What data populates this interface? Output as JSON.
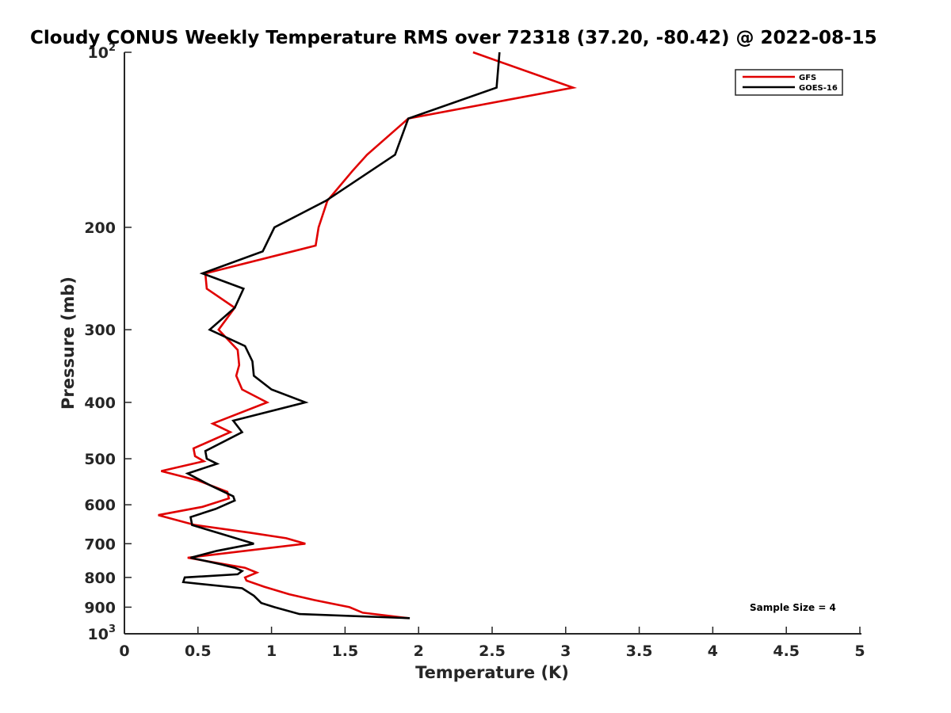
{
  "chart_data": {
    "type": "line",
    "title": "Cloudy CONUS Weekly Temperature RMS over 72318 (37.20, -80.42) @ 2022-08-15",
    "xlabel": "Temperature (K)",
    "ylabel": "Pressure (mb)",
    "xlim": [
      0,
      5
    ],
    "ylim": [
      1000,
      100
    ],
    "y_scale": "log",
    "y_reversed": true,
    "grid": false,
    "legend_position": "top-right",
    "x_ticks": [
      "0",
      "0.5",
      "1",
      "1.5",
      "2",
      "2.5",
      "3",
      "3.5",
      "4",
      "4.5",
      "5"
    ],
    "x_tick_values": [
      0,
      0.5,
      1,
      1.5,
      2,
      2.5,
      3,
      3.5,
      4,
      4.5,
      5
    ],
    "y_ticks": [
      {
        "value": 100,
        "base": "10",
        "exp": "2"
      },
      {
        "value": 200,
        "label": "200"
      },
      {
        "value": 300,
        "label": "300"
      },
      {
        "value": 400,
        "label": "400"
      },
      {
        "value": 500,
        "label": "500"
      },
      {
        "value": 600,
        "label": "600"
      },
      {
        "value": 700,
        "label": "700"
      },
      {
        "value": 800,
        "label": "800"
      },
      {
        "value": 900,
        "label": "900"
      },
      {
        "value": 1000,
        "base": "10",
        "exp": "3"
      }
    ],
    "annotation": "Sample Size = 4",
    "series": [
      {
        "name": "GFS",
        "color": "#e00000",
        "points": [
          [
            2.37,
            100
          ],
          [
            3.05,
            115
          ],
          [
            1.93,
            130
          ],
          [
            1.65,
            150
          ],
          [
            1.55,
            160
          ],
          [
            1.38,
            180
          ],
          [
            1.32,
            200
          ],
          [
            1.3,
            215
          ],
          [
            0.55,
            240
          ],
          [
            0.56,
            255
          ],
          [
            0.75,
            275
          ],
          [
            0.64,
            300
          ],
          [
            0.77,
            325
          ],
          [
            0.78,
            345
          ],
          [
            0.76,
            360
          ],
          [
            0.8,
            380
          ],
          [
            0.97,
            400
          ],
          [
            0.6,
            435
          ],
          [
            0.72,
            450
          ],
          [
            0.47,
            480
          ],
          [
            0.48,
            495
          ],
          [
            0.54,
            505
          ],
          [
            0.25,
            525
          ],
          [
            0.5,
            545
          ],
          [
            0.7,
            570
          ],
          [
            0.71,
            585
          ],
          [
            0.53,
            605
          ],
          [
            0.23,
            625
          ],
          [
            0.48,
            650
          ],
          [
            0.85,
            670
          ],
          [
            1.1,
            685
          ],
          [
            1.23,
            700
          ],
          [
            0.43,
            740
          ],
          [
            0.82,
            770
          ],
          [
            0.9,
            785
          ],
          [
            0.82,
            800
          ],
          [
            0.83,
            810
          ],
          [
            0.95,
            830
          ],
          [
            1.12,
            855
          ],
          [
            1.29,
            875
          ],
          [
            1.53,
            900
          ],
          [
            1.62,
            920
          ],
          [
            1.93,
            940
          ]
        ]
      },
      {
        "name": "GOES-16",
        "color": "#000000",
        "points": [
          [
            2.55,
            100
          ],
          [
            2.53,
            115
          ],
          [
            1.93,
            130
          ],
          [
            1.84,
            150
          ],
          [
            1.37,
            180
          ],
          [
            1.02,
            200
          ],
          [
            0.94,
            220
          ],
          [
            0.53,
            240
          ],
          [
            0.81,
            255
          ],
          [
            0.75,
            275
          ],
          [
            0.58,
            300
          ],
          [
            0.82,
            320
          ],
          [
            0.87,
            340
          ],
          [
            0.88,
            360
          ],
          [
            1.0,
            380
          ],
          [
            1.23,
            400
          ],
          [
            0.74,
            430
          ],
          [
            0.8,
            450
          ],
          [
            0.55,
            485
          ],
          [
            0.56,
            500
          ],
          [
            0.63,
            510
          ],
          [
            0.43,
            530
          ],
          [
            0.58,
            555
          ],
          [
            0.74,
            580
          ],
          [
            0.75,
            590
          ],
          [
            0.62,
            610
          ],
          [
            0.45,
            630
          ],
          [
            0.46,
            650
          ],
          [
            0.88,
            700
          ],
          [
            0.63,
            720
          ],
          [
            0.45,
            740
          ],
          [
            0.66,
            760
          ],
          [
            0.75,
            770
          ],
          [
            0.8,
            780
          ],
          [
            0.77,
            790
          ],
          [
            0.41,
            800
          ],
          [
            0.4,
            815
          ],
          [
            0.8,
            835
          ],
          [
            0.88,
            860
          ],
          [
            0.93,
            885
          ],
          [
            1.02,
            900
          ],
          [
            1.19,
            925
          ],
          [
            1.94,
            940
          ]
        ]
      }
    ]
  }
}
